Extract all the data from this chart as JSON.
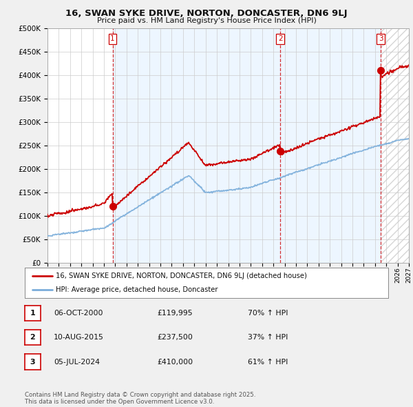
{
  "title": "16, SWAN SYKE DRIVE, NORTON, DONCASTER, DN6 9LJ",
  "subtitle": "Price paid vs. HM Land Registry's House Price Index (HPI)",
  "bg_color": "#f0f0f0",
  "plot_bg_color": "#ffffff",
  "grid_color": "#cccccc",
  "sale1_date": 2000.76,
  "sale1_price": 119995,
  "sale2_date": 2015.61,
  "sale2_price": 237500,
  "sale3_date": 2024.51,
  "sale3_price": 410000,
  "legend_label_red": "16, SWAN SYKE DRIVE, NORTON, DONCASTER, DN6 9LJ (detached house)",
  "legend_label_blue": "HPI: Average price, detached house, Doncaster",
  "table_rows": [
    {
      "num": "1",
      "date": "06-OCT-2000",
      "price": "£119,995",
      "hpi": "70% ↑ HPI"
    },
    {
      "num": "2",
      "date": "10-AUG-2015",
      "price": "£237,500",
      "hpi": "37% ↑ HPI"
    },
    {
      "num": "3",
      "date": "05-JUL-2024",
      "price": "£410,000",
      "hpi": "61% ↑ HPI"
    }
  ],
  "footer": "Contains HM Land Registry data © Crown copyright and database right 2025.\nThis data is licensed under the Open Government Licence v3.0.",
  "xmin": 1995,
  "xmax": 2027,
  "ymin": 0,
  "ymax": 500000,
  "yticks": [
    0,
    50000,
    100000,
    150000,
    200000,
    250000,
    300000,
    350000,
    400000,
    450000,
    500000
  ],
  "red_color": "#cc0000",
  "blue_color": "#7aadda",
  "blue_fill_color": "#ddeeff",
  "vline_color": "#cc0000"
}
